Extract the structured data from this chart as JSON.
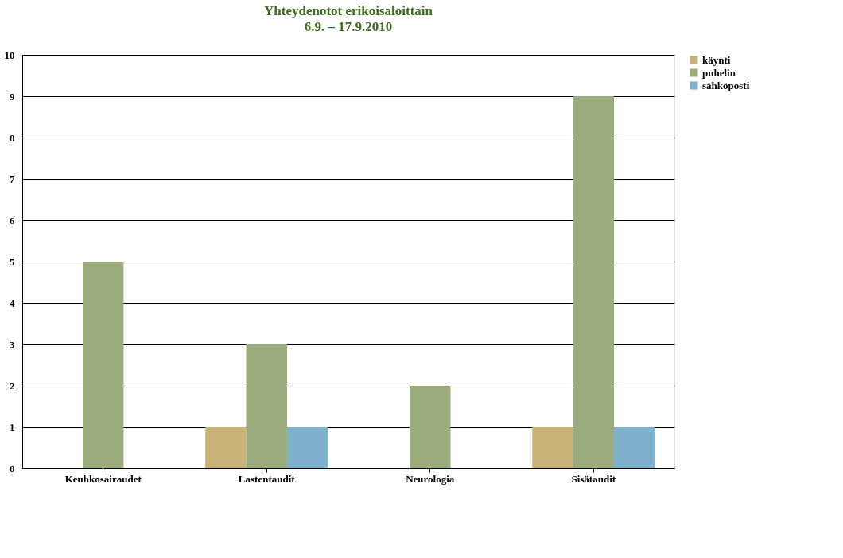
{
  "chart_data": {
    "type": "bar",
    "title": "Yhteydenotot erikoisaloittain",
    "subtitle": "6.9. – 17.9.2010",
    "categories": [
      "Keuhkosairaudet",
      "Lastentaudit",
      "Neurologia",
      "Sisätaudit"
    ],
    "series": [
      {
        "name": "käynti",
        "color": "#c8b277",
        "values": [
          null,
          1,
          null,
          1
        ]
      },
      {
        "name": "puhelin",
        "color": "#9aab7e",
        "values": [
          5,
          3,
          2,
          9
        ]
      },
      {
        "name": "sähköposti",
        "color": "#7fb1cc",
        "values": [
          null,
          1,
          null,
          1
        ]
      }
    ],
    "ylim": [
      0,
      10
    ],
    "yticks": [
      0,
      1,
      2,
      3,
      4,
      5,
      6,
      7,
      8,
      9,
      10
    ],
    "grid": "y",
    "legend": "right"
  }
}
